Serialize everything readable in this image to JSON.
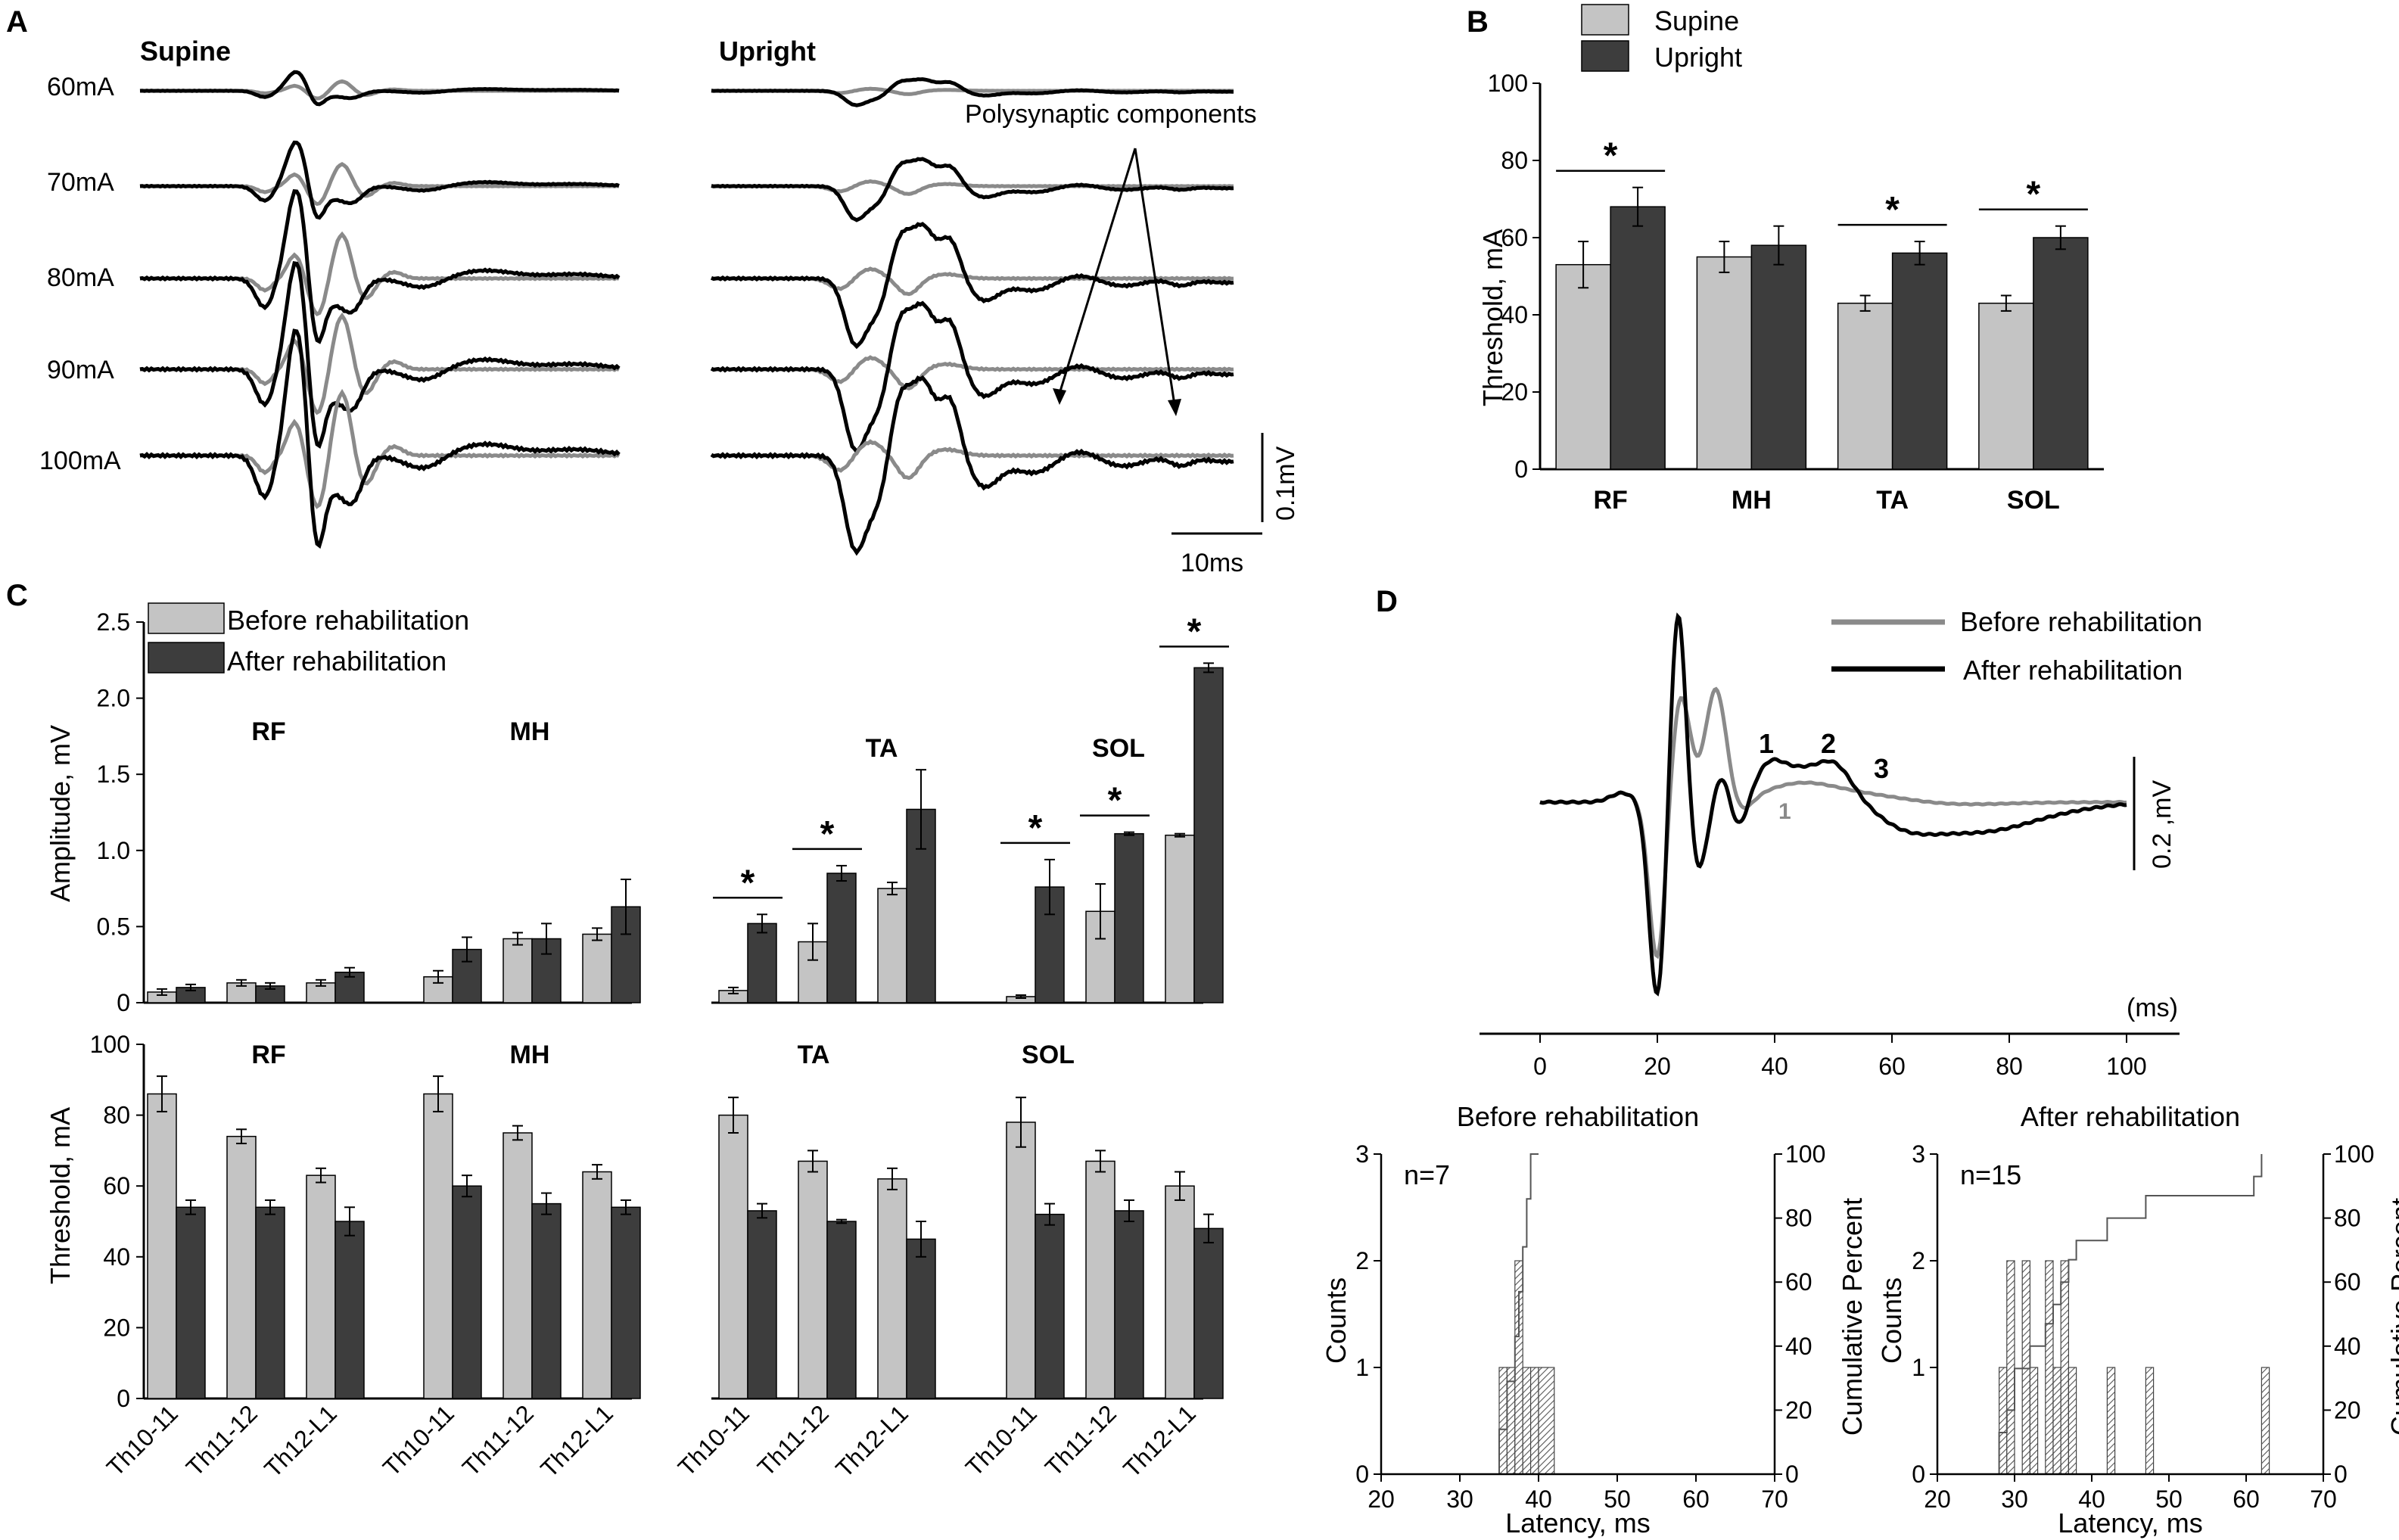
{
  "colors": {
    "supine_before": "#c4c4c4",
    "upright_after": "#3d3d3d",
    "trace_gray": "#8a8a8a",
    "trace_black": "#000000"
  },
  "panel_a": {
    "letter": "A",
    "left_header": "Supine",
    "right_header": "Upright",
    "intensities": [
      "60mA",
      "70mA",
      "80mA",
      "90mA",
      "100mA"
    ],
    "annotation": "Polysynaptic components",
    "scale_amplitude": "0.1mV",
    "scale_time": "10ms"
  },
  "panel_b": {
    "letter": "B",
    "legend": [
      "Supine",
      "Upright"
    ],
    "ylabel": "Threshold, mA",
    "yticks": [
      "0",
      "20",
      "40",
      "60",
      "80",
      "100"
    ],
    "asterisk": "*"
  },
  "panel_c": {
    "letter": "C",
    "legend": [
      "Before rehabilitation",
      "After rehabilitation"
    ],
    "top_ylabel": "Amplitude, mV",
    "top_yticks": [
      "0",
      "0.5",
      "1.0",
      "1.5",
      "2.0",
      "2.5"
    ],
    "bottom_ylabel": "Threshold, mA",
    "bottom_yticks": [
      "0",
      "20",
      "40",
      "60",
      "80",
      "100"
    ],
    "muscles": [
      "RF",
      "MH",
      "TA",
      "SOL"
    ],
    "levels": [
      "Th10-11",
      "Th11-12",
      "Th12-L1"
    ],
    "asterisk": "*"
  },
  "panel_d": {
    "letter": "D",
    "legend": [
      "Before rehabilitation",
      "After rehabilitation"
    ],
    "peak_labels": [
      "1",
      "2",
      "3",
      "1"
    ],
    "scale_amplitude": "0.2 ,mV",
    "xunit": "(ms)",
    "xticks": [
      "0",
      "20",
      "40",
      "60",
      "80",
      "100"
    ],
    "hist_before": {
      "title": "Before rehabilitation",
      "n": "n=7"
    },
    "hist_after": {
      "title": "After rehabilitation",
      "n": "n=15"
    },
    "hist_ylabel": "Counts",
    "hist_y2label": "Cumulative Percent",
    "hist_xlabel": "Latency, ms",
    "hist_xticks": [
      "20",
      "30",
      "40",
      "50",
      "60",
      "70"
    ],
    "hist_yticks": [
      "0",
      "1",
      "2",
      "3"
    ],
    "hist_y2ticks": [
      "0",
      "20",
      "40",
      "60",
      "80",
      "100"
    ]
  },
  "chart_data": [
    {
      "id": "B",
      "type": "bar",
      "title": "",
      "xlabel": "",
      "ylabel": "Threshold, mA",
      "ylim": [
        0,
        100
      ],
      "categories": [
        "RF",
        "MH",
        "TA",
        "SOL"
      ],
      "series": [
        {
          "name": "Supine",
          "values": [
            53,
            55,
            43,
            43
          ],
          "errors": [
            6,
            4,
            2,
            2
          ]
        },
        {
          "name": "Upright",
          "values": [
            68,
            58,
            56,
            60
          ],
          "errors": [
            5,
            5,
            3,
            3
          ]
        }
      ],
      "significant": [
        "RF",
        "TA",
        "SOL"
      ]
    },
    {
      "id": "C-amplitude",
      "type": "bar",
      "ylabel": "Amplitude, mV",
      "ylim": [
        0,
        2.5
      ],
      "categories": [
        "RF Th10-11",
        "RF Th11-12",
        "RF Th12-L1",
        "MH Th10-11",
        "MH Th11-12",
        "MH Th12-L1",
        "TA Th10-11",
        "TA Th11-12",
        "TA Th12-L1",
        "SOL Th10-11",
        "SOL Th11-12",
        "SOL Th12-L1"
      ],
      "series": [
        {
          "name": "Before rehabilitation",
          "values": [
            0.07,
            0.13,
            0.13,
            0.17,
            0.42,
            0.45,
            0.08,
            0.4,
            0.75,
            0.04,
            0.6,
            1.1
          ],
          "errors": [
            0.02,
            0.02,
            0.02,
            0.04,
            0.04,
            0.04,
            0.02,
            0.12,
            0.04,
            0.01,
            0.18,
            0.01
          ]
        },
        {
          "name": "After rehabilitation",
          "values": [
            0.1,
            0.11,
            0.2,
            0.35,
            0.42,
            0.63,
            0.52,
            0.85,
            1.27,
            0.76,
            1.11,
            2.2
          ],
          "errors": [
            0.02,
            0.02,
            0.03,
            0.08,
            0.1,
            0.18,
            0.06,
            0.05,
            0.26,
            0.18,
            0.01,
            0.03
          ]
        }
      ],
      "significant": [
        "TA Th10-11",
        "TA Th11-12",
        "SOL Th10-11",
        "SOL Th11-12",
        "SOL Th12-L1"
      ]
    },
    {
      "id": "C-threshold",
      "type": "bar",
      "ylabel": "Threshold, mA",
      "ylim": [
        0,
        100
      ],
      "categories": [
        "RF Th10-11",
        "RF Th11-12",
        "RF Th12-L1",
        "MH Th10-11",
        "MH Th11-12",
        "MH Th12-L1",
        "TA Th10-11",
        "TA Th11-12",
        "TA Th12-L1",
        "SOL Th10-11",
        "SOL Th11-12",
        "SOL Th12-L1"
      ],
      "series": [
        {
          "name": "Before rehabilitation",
          "values": [
            86,
            74,
            63,
            86,
            75,
            64,
            80,
            67,
            62,
            78,
            67,
            60
          ],
          "errors": [
            5,
            2,
            2,
            5,
            2,
            2,
            5,
            3,
            3,
            7,
            3,
            4
          ]
        },
        {
          "name": "After rehabilitation",
          "values": [
            54,
            54,
            50,
            60,
            55,
            54,
            53,
            50,
            45,
            52,
            53,
            48
          ],
          "errors": [
            2,
            2,
            4,
            3,
            3,
            2,
            2,
            0.5,
            5,
            3,
            3,
            4
          ]
        }
      ]
    },
    {
      "id": "D-before",
      "type": "bar",
      "title": "Before rehabilitation",
      "xlabel": "Latency, ms",
      "ylabel": "Counts",
      "y2label": "Cumulative Percent",
      "xlim": [
        20,
        70
      ],
      "ylim": [
        0,
        3
      ],
      "bins": [
        [
          35,
          36,
          1
        ],
        [
          36,
          37,
          1
        ],
        [
          37,
          38,
          2
        ],
        [
          38,
          39,
          1
        ],
        [
          39,
          40,
          1
        ],
        [
          40,
          42,
          1
        ]
      ],
      "cumulative": [
        [
          35,
          0
        ],
        [
          35,
          14
        ],
        [
          36,
          29
        ],
        [
          37,
          43
        ],
        [
          37.5,
          57
        ],
        [
          38,
          71
        ],
        [
          38.5,
          86
        ],
        [
          39,
          100
        ],
        [
          40,
          100
        ]
      ]
    },
    {
      "id": "D-after",
      "type": "bar",
      "title": "After rehabilitation",
      "xlabel": "Latency, ms",
      "ylabel": "Counts",
      "y2label": "Cumulative Percent",
      "xlim": [
        20,
        70
      ],
      "ylim": [
        0,
        3
      ],
      "bins": [
        [
          28,
          29,
          1
        ],
        [
          29,
          30,
          2
        ],
        [
          31,
          32,
          2
        ],
        [
          32,
          33,
          1
        ],
        [
          34,
          35,
          2
        ],
        [
          35,
          36,
          1
        ],
        [
          36,
          37,
          2
        ],
        [
          37,
          38,
          1
        ],
        [
          42,
          43,
          1
        ],
        [
          47,
          48,
          1
        ],
        [
          62,
          63,
          1
        ]
      ],
      "cumulative": [
        [
          28,
          0
        ],
        [
          28,
          13
        ],
        [
          29,
          20
        ],
        [
          30,
          33
        ],
        [
          32,
          40
        ],
        [
          34,
          47
        ],
        [
          35,
          53
        ],
        [
          36,
          60
        ],
        [
          37,
          67
        ],
        [
          38,
          73
        ],
        [
          42,
          80
        ],
        [
          47,
          87
        ],
        [
          61,
          93
        ],
        [
          62,
          100
        ]
      ]
    }
  ]
}
